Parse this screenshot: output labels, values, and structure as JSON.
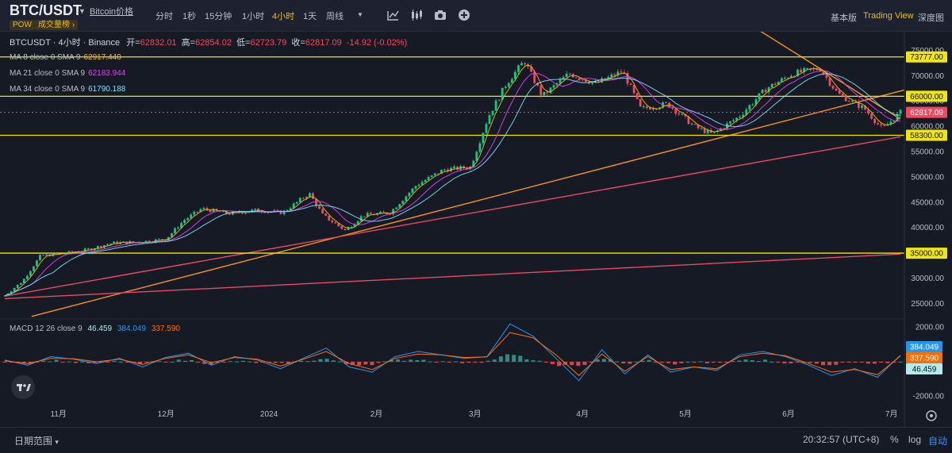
{
  "header": {
    "symbol": "BTC/USDT",
    "price_link": "Bitcoin价格",
    "tags": [
      "POW",
      "成交量榜 ›"
    ],
    "intervals": [
      "分时",
      "1秒",
      "15分钟",
      "1小时",
      "4小时",
      "1天",
      "周线"
    ],
    "active_interval": "4小时",
    "views": [
      "基本版",
      "Trading View",
      "深度图"
    ],
    "active_view": "Trading View",
    "tool_icons": [
      "indicators-icon",
      "candle-type-icon",
      "camera-icon",
      "add-icon"
    ]
  },
  "legend": {
    "title": "BTCUSDT · 4小时 · Binance",
    "open_label": "开=",
    "open": "62832.01",
    "high_label": "高=",
    "high": "62854.02",
    "low_label": "低=",
    "low": "62723.79",
    "close_label": "收=",
    "close": "62817.09",
    "change": "-14.92 (-0.02%)"
  },
  "ma": [
    {
      "label": "MA 8 close 0 SMA 9",
      "value": "62917.440",
      "color": "#f0b90b"
    },
    {
      "label": "MA 21 close 0 SMA 9",
      "value": "62183.944",
      "color": "#e040fb"
    },
    {
      "label": "MA 34 close 0 SMA 9",
      "value": "61790.188",
      "color": "#7fdfff"
    }
  ],
  "macd": {
    "label": "MACD 12 26 close 9",
    "values": [
      "46.459",
      "384.049",
      "337.590"
    ],
    "colors": [
      "#b2ebf2",
      "#2196f3",
      "#ff6d00"
    ]
  },
  "chart_data": {
    "type": "candlestick",
    "symbol": "BTCUSDT",
    "interval": "4小时",
    "exchange": "Binance",
    "price_axis": {
      "ticks": [
        75000,
        70000,
        65000,
        60000,
        55000,
        50000,
        45000,
        40000,
        35000,
        30000,
        25000
      ],
      "ylim": [
        22000,
        77500
      ]
    },
    "tick_labels": [
      "75000.00",
      "70000.00",
      "65000.00",
      "60000.00",
      "55000.00",
      "50000.00",
      "45000.00",
      "40000.00",
      "35000.00",
      "30000.00",
      "25000.00"
    ],
    "time_axis": [
      "11月",
      "12月",
      "2024",
      "2月",
      "3月",
      "4月",
      "5月",
      "6月",
      "7月"
    ],
    "price_series": [
      {
        "t": 0.0,
        "v": 26600
      },
      {
        "t": 0.02,
        "v": 29500
      },
      {
        "t": 0.04,
        "v": 34500
      },
      {
        "t": 0.06,
        "v": 34800
      },
      {
        "t": 0.09,
        "v": 35600
      },
      {
        "t": 0.12,
        "v": 37000
      },
      {
        "t": 0.15,
        "v": 37200
      },
      {
        "t": 0.18,
        "v": 37800
      },
      {
        "t": 0.2,
        "v": 41500
      },
      {
        "t": 0.22,
        "v": 43800
      },
      {
        "t": 0.25,
        "v": 42800
      },
      {
        "t": 0.28,
        "v": 43500
      },
      {
        "t": 0.31,
        "v": 43000
      },
      {
        "t": 0.34,
        "v": 46800
      },
      {
        "t": 0.355,
        "v": 42500
      },
      {
        "t": 0.38,
        "v": 39500
      },
      {
        "t": 0.4,
        "v": 42500
      },
      {
        "t": 0.43,
        "v": 43000
      },
      {
        "t": 0.46,
        "v": 48500
      },
      {
        "t": 0.49,
        "v": 51500
      },
      {
        "t": 0.52,
        "v": 52000
      },
      {
        "t": 0.54,
        "v": 62000
      },
      {
        "t": 0.56,
        "v": 68500
      },
      {
        "t": 0.58,
        "v": 73000
      },
      {
        "t": 0.6,
        "v": 66000
      },
      {
        "t": 0.63,
        "v": 70500
      },
      {
        "t": 0.66,
        "v": 68500
      },
      {
        "t": 0.69,
        "v": 71000
      },
      {
        "t": 0.71,
        "v": 63500
      },
      {
        "t": 0.74,
        "v": 64500
      },
      {
        "t": 0.77,
        "v": 60000
      },
      {
        "t": 0.79,
        "v": 58500
      },
      {
        "t": 0.82,
        "v": 62000
      },
      {
        "t": 0.85,
        "v": 67500
      },
      {
        "t": 0.88,
        "v": 70500
      },
      {
        "t": 0.91,
        "v": 71500
      },
      {
        "t": 0.93,
        "v": 66500
      },
      {
        "t": 0.96,
        "v": 63500
      },
      {
        "t": 0.98,
        "v": 59500
      },
      {
        "t": 1.0,
        "v": 62817
      }
    ],
    "horizontal_levels": [
      {
        "value": 73777,
        "label": "73777.00",
        "color": "#f0e60b"
      },
      {
        "value": 66000,
        "label": "66000.00",
        "color": "#f0e60b"
      },
      {
        "value": 58300,
        "label": "58300.00",
        "color": "#f0e60b"
      },
      {
        "value": 35000,
        "label": "35000.00",
        "color": "#f0e60b"
      }
    ],
    "current_price": {
      "value": 62817.09,
      "label": "62817.09",
      "color": "#f6465d"
    },
    "trendlines": [
      {
        "color": "#f7931a",
        "from": {
          "t": 0.03,
          "v": 22500
        },
        "to": {
          "t": 1.01,
          "v": 67500
        }
      },
      {
        "color": "#f7931a",
        "from": {
          "t": 0.82,
          "v": 81500
        },
        "to": {
          "t": 1.0,
          "v": 61500
        }
      },
      {
        "color": "#e84a5f",
        "from": {
          "t": 0.0,
          "v": 26500
        },
        "to": {
          "t": 1.0,
          "v": 58000
        }
      },
      {
        "color": "#e84a5f",
        "from": {
          "t": 0.0,
          "v": 26000
        },
        "to": {
          "t": 1.0,
          "v": 34800
        }
      }
    ],
    "macd_axis": {
      "ticks": [
        2000,
        -2000
      ],
      "tick_labels": [
        "2000.00",
        "-2000.00"
      ],
      "ylim": [
        -2400,
        2400
      ]
    },
    "macd_series": {
      "macd": [
        100,
        -200,
        300,
        150,
        -100,
        200,
        -300,
        250,
        500,
        -200,
        300,
        100,
        -400,
        200,
        800,
        -300,
        -600,
        300,
        600,
        400,
        200,
        300,
        2200,
        1500,
        200,
        -1100,
        700,
        -700,
        400,
        -600,
        -300,
        -500,
        400,
        600,
        300,
        -200,
        -800,
        -400,
        -900,
        384
      ],
      "signal": [
        50,
        -100,
        200,
        180,
        0,
        150,
        -150,
        200,
        400,
        -50,
        250,
        150,
        -250,
        150,
        600,
        -100,
        -450,
        200,
        450,
        400,
        250,
        280,
        1700,
        1400,
        400,
        -800,
        450,
        -550,
        300,
        -450,
        -300,
        -400,
        300,
        500,
        350,
        -100,
        -600,
        -450,
        -750,
        337.59
      ]
    }
  },
  "bottom": {
    "date_range": "日期范围",
    "clock": "20:32:57 (UTC+8)",
    "options": [
      "%",
      "log",
      "自动"
    ],
    "active_option": "自动"
  }
}
